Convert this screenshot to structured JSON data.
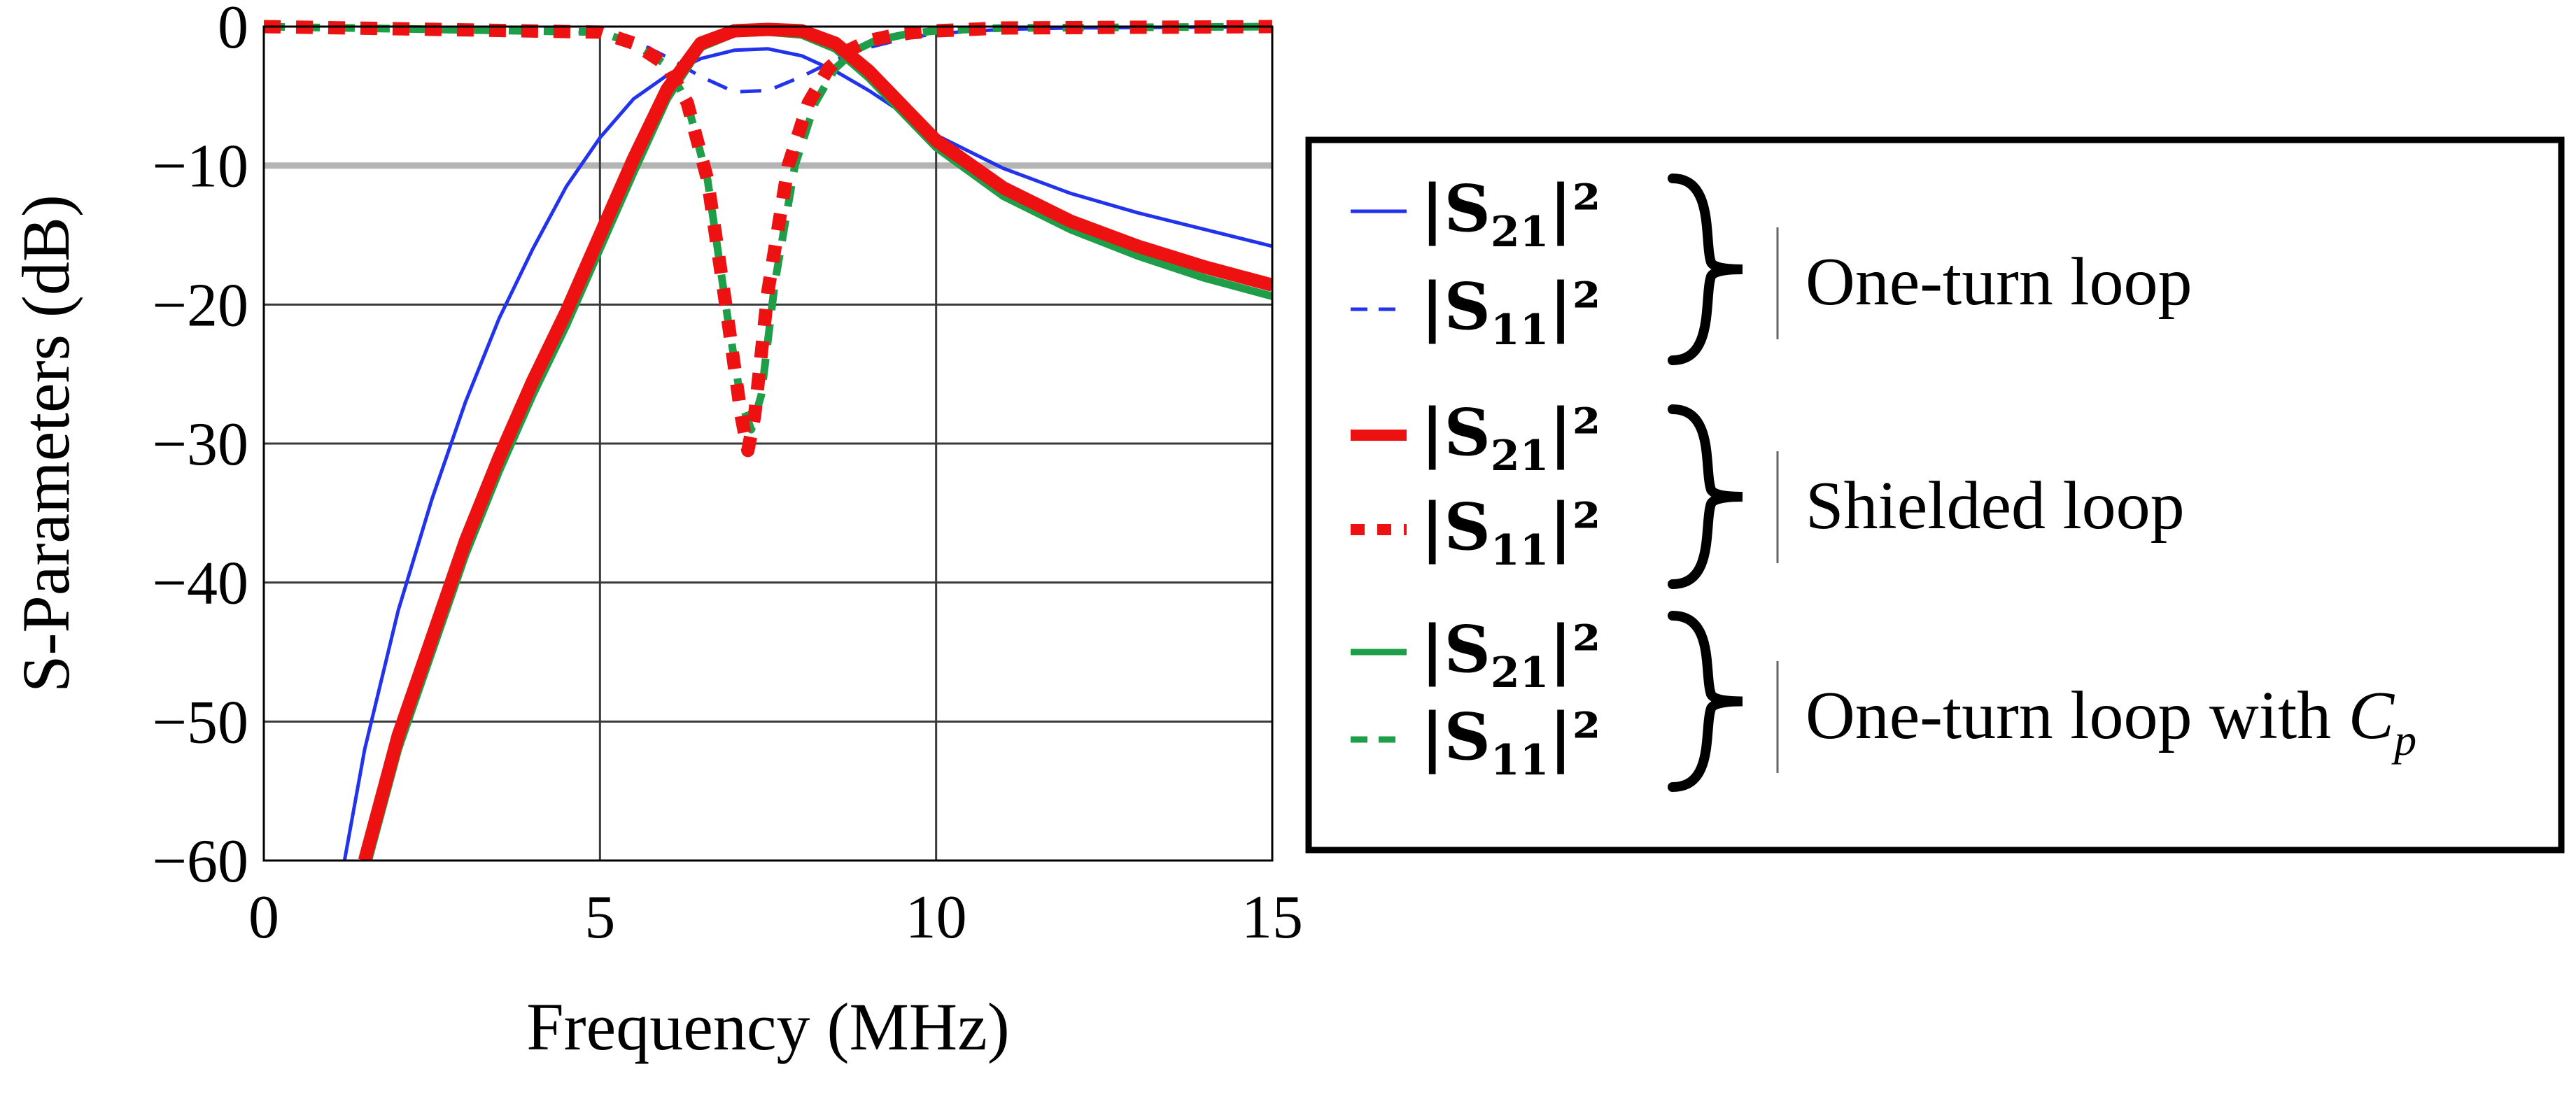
{
  "chart_data": {
    "type": "line",
    "title": "",
    "xlabel": "Frequency (MHz)",
    "ylabel": "S-Parameters (dB)",
    "xlim": [
      0,
      15
    ],
    "ylim": [
      -60,
      0
    ],
    "grid": true,
    "xticks": [
      0,
      5,
      10,
      15
    ],
    "yticks": [
      0,
      -10,
      -20,
      -30,
      -40,
      -50,
      -60
    ],
    "xtick_labels": [
      "0",
      "5",
      "10",
      "15"
    ],
    "ytick_labels": [
      "0",
      "−10",
      "−20",
      "−30",
      "−40",
      "−50",
      "−60"
    ],
    "series": [
      {
        "name": "|S21|^2",
        "group": "One-turn loop",
        "color": "#2233ee",
        "dash": "solid",
        "weight": "thin",
        "x": [
          1.2,
          1.5,
          2.0,
          2.5,
          3.0,
          3.5,
          4.0,
          4.5,
          5.0,
          5.5,
          6.0,
          6.5,
          7.0,
          7.5,
          8.0,
          8.5,
          9.0,
          9.5,
          10.0,
          11.0,
          12.0,
          13.0,
          14.0,
          15.0
        ],
        "y": [
          -60,
          -52,
          -42,
          -34,
          -27,
          -21,
          -16,
          -11.5,
          -8,
          -5.2,
          -3.5,
          -2.3,
          -1.7,
          -1.6,
          -2.1,
          -3.2,
          -4.6,
          -6.2,
          -7.8,
          -10.2,
          -12,
          -13.4,
          -14.6,
          -15.8
        ]
      },
      {
        "name": "|S11|^2",
        "group": "One-turn loop",
        "color": "#2233ee",
        "dash": "dashed",
        "weight": "thin",
        "x": [
          0,
          4.5,
          5.5,
          6.0,
          6.5,
          7.0,
          7.5,
          8.0,
          8.5,
          9.0,
          9.5,
          10.0,
          11.0,
          12.0,
          15.0
        ],
        "y": [
          0,
          -0.2,
          -1.0,
          -2.2,
          -3.6,
          -4.7,
          -4.6,
          -3.6,
          -2.4,
          -1.5,
          -0.9,
          -0.5,
          -0.2,
          -0.1,
          0
        ]
      },
      {
        "name": "|S21|^2",
        "group": "Shielded loop",
        "color": "#ee1111",
        "dash": "solid",
        "weight": "thick",
        "x": [
          1.5,
          2.0,
          2.5,
          3.0,
          3.5,
          4.0,
          4.5,
          5.0,
          5.5,
          6.0,
          6.5,
          7.0,
          7.5,
          8.0,
          8.5,
          9.0,
          9.5,
          10.0,
          11.0,
          12.0,
          13.0,
          14.0,
          15.0
        ],
        "y": [
          -60,
          -51,
          -44,
          -37,
          -31,
          -25.5,
          -20.5,
          -15,
          -9.5,
          -4.5,
          -1.2,
          -0.3,
          -0.2,
          -0.3,
          -1.2,
          -3.2,
          -5.7,
          -8.2,
          -11.6,
          -14,
          -15.8,
          -17.3,
          -18.6
        ]
      },
      {
        "name": "|S11|^2",
        "group": "Shielded loop",
        "color": "#ee1111",
        "dash": "dotted",
        "weight": "thick",
        "x": [
          0,
          5.0,
          5.5,
          6.0,
          6.3,
          6.6,
          6.9,
          7.1,
          7.2,
          7.3,
          7.5,
          7.8,
          8.1,
          8.4,
          8.7,
          9.0,
          9.5,
          10.0,
          11.0,
          15.0
        ],
        "y": [
          0,
          -0.4,
          -1.2,
          -2.8,
          -5.5,
          -11,
          -21,
          -28,
          -30.5,
          -28,
          -19,
          -10,
          -5.5,
          -3,
          -1.7,
          -1.0,
          -0.5,
          -0.3,
          -0.1,
          0
        ]
      },
      {
        "name": "|S21|^2",
        "group": "One-turn loop with Cp",
        "color": "#1e9e48",
        "dash": "solid",
        "weight": "medium",
        "x": [
          1.5,
          2.0,
          2.5,
          3.0,
          3.5,
          4.0,
          4.5,
          5.0,
          5.5,
          6.0,
          6.5,
          7.0,
          7.5,
          8.0,
          8.5,
          9.0,
          9.5,
          10.0,
          11.0,
          12.0,
          13.0,
          14.0,
          15.0
        ],
        "y": [
          -61,
          -52,
          -45,
          -38,
          -32,
          -26.5,
          -21.5,
          -16,
          -10.5,
          -5.2,
          -1.5,
          -0.5,
          -0.4,
          -0.6,
          -1.6,
          -3.7,
          -6.2,
          -8.7,
          -12.2,
          -14.6,
          -16.5,
          -18.1,
          -19.4
        ]
      },
      {
        "name": "|S11|^2",
        "group": "One-turn loop with Cp",
        "color": "#1e9e48",
        "dash": "dashed",
        "weight": "medium",
        "x": [
          0,
          5.0,
          5.5,
          6.0,
          6.3,
          6.6,
          6.9,
          7.1,
          7.25,
          7.4,
          7.6,
          7.9,
          8.2,
          8.5,
          8.8,
          9.1,
          9.6,
          10.0,
          11.0,
          15.0
        ],
        "y": [
          0,
          -0.4,
          -1.2,
          -2.8,
          -5.5,
          -11,
          -21,
          -27,
          -29,
          -26.5,
          -18.5,
          -10,
          -5.5,
          -3,
          -1.7,
          -1.0,
          -0.5,
          -0.3,
          -0.1,
          0
        ]
      }
    ],
    "legend": {
      "placement": "right",
      "entries": [
        {
          "term_main": "|S",
          "term_sub": "21",
          "term_post": "|²",
          "color": "#2233ee",
          "style": "solid"
        },
        {
          "term_main": "|S",
          "term_sub": "11",
          "term_post": "|²",
          "color": "#2233ee",
          "style": "dashed"
        },
        {
          "term_main": "|S",
          "term_sub": "21",
          "term_post": "|²",
          "color": "#ee1111",
          "style": "solid"
        },
        {
          "term_main": "|S",
          "term_sub": "11",
          "term_post": "|²",
          "color": "#ee1111",
          "style": "dotted"
        },
        {
          "term_main": "|S",
          "term_sub": "21",
          "term_post": "|²",
          "color": "#1e9e48",
          "style": "solid"
        },
        {
          "term_main": "|S",
          "term_sub": "11",
          "term_post": "|²",
          "color": "#1e9e48",
          "style": "dashed"
        }
      ],
      "groups": [
        {
          "label": "One-turn loop"
        },
        {
          "label": "Shielded loop"
        },
        {
          "label_main": "One-turn loop with ",
          "label_var": "C",
          "label_sub": "p"
        }
      ]
    }
  }
}
